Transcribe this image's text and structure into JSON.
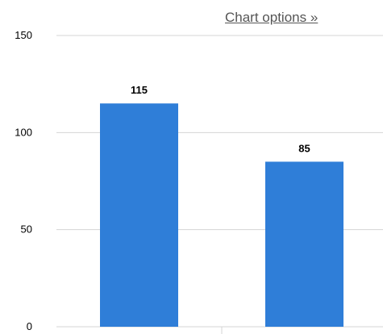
{
  "chart_options_label": "Chart options »",
  "colors": {
    "bar": "#2f7ed8",
    "grid": "#d4d4d4",
    "axis": "#d4d4d4"
  },
  "chart_data": {
    "type": "bar",
    "categories": [
      "",
      ""
    ],
    "values": [
      115,
      85
    ],
    "data_labels": [
      "115",
      "85"
    ],
    "ylim": [
      0,
      150
    ],
    "yticks": [
      0,
      50,
      100,
      150
    ],
    "ytick_labels": [
      "0",
      "50",
      "100",
      "150"
    ],
    "grid": true,
    "title": "",
    "xlabel": "",
    "ylabel": ""
  }
}
